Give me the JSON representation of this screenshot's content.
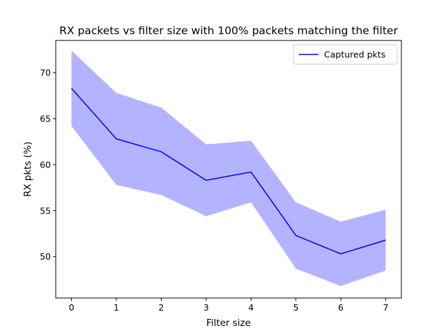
{
  "chart_data": {
    "type": "line",
    "title": "RX packets vs filter size with 100% packets matching the filter",
    "xlabel": "Filter size",
    "ylabel": "RX pkts (%)",
    "x": [
      0,
      1,
      2,
      3,
      4,
      5,
      6,
      7
    ],
    "xlim": [
      -0.35,
      7.35
    ],
    "ylim": [
      45.5,
      73.5
    ],
    "xticks": [
      0,
      1,
      2,
      3,
      4,
      5,
      6,
      7
    ],
    "yticks": [
      50,
      55,
      60,
      65,
      70
    ],
    "grid": false,
    "legend_position": "upper-right",
    "series": [
      {
        "name": "Captured pkts",
        "color": "#0000ff",
        "values": [
          68.3,
          62.8,
          61.4,
          58.3,
          59.2,
          52.3,
          50.3,
          51.8
        ],
        "band_lower": [
          64.2,
          57.8,
          56.7,
          54.4,
          55.9,
          48.7,
          46.8,
          48.5
        ],
        "band_upper": [
          72.4,
          67.8,
          66.2,
          62.2,
          62.6,
          55.9,
          53.8,
          55.1
        ],
        "band_color": "#b3b3ff"
      }
    ]
  }
}
